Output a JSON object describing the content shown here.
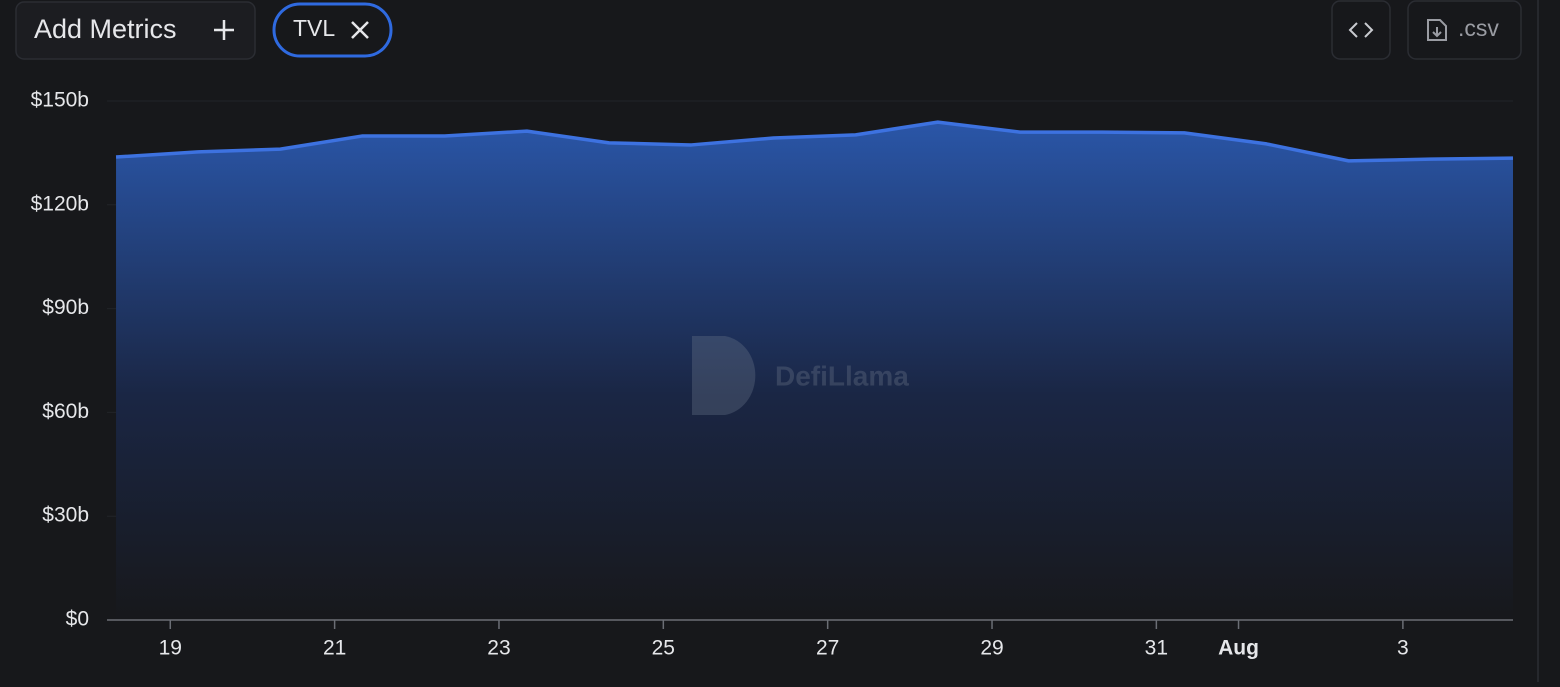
{
  "toolbar": {
    "add_metrics": "Add Metrics",
    "csv_button": ".csv"
  },
  "watermark": "DefiLlama",
  "chart_data": {
    "type": "area",
    "x": [
      18.34,
      19.34,
      20.34,
      21.34,
      22.34,
      23.34,
      24.34,
      25.34,
      26.34,
      27.34,
      28.34,
      29.34,
      30.34,
      31.34,
      32.34,
      33.34,
      34.34,
      35.34
    ],
    "series": [
      {
        "name": "TVL",
        "color": "#3d72e0",
        "values": [
          133.8,
          135.3,
          136.1,
          139.9,
          139.9,
          141.3,
          137.9,
          137.3,
          139.3,
          140.2,
          143.9,
          141.0,
          141.0,
          140.8,
          137.6,
          132.7,
          133.2,
          133.5
        ]
      }
    ],
    "xlim": [
      18.23,
      35.34
    ],
    "xticks": [
      19,
      21,
      23,
      25,
      27,
      29,
      31,
      {
        "value": 32,
        "label": "Aug"
      },
      {
        "value": 34,
        "label": "3"
      }
    ],
    "ylim": [
      0,
      150
    ],
    "yticks": [
      {
        "value": 0,
        "label": "$0"
      },
      {
        "value": 30,
        "label": "$30b"
      },
      {
        "value": 60,
        "label": "$60b"
      },
      {
        "value": 90,
        "label": "$90b"
      },
      {
        "value": 120,
        "label": "$120b"
      },
      {
        "value": 150,
        "label": "$150b"
      }
    ],
    "grid": true
  }
}
